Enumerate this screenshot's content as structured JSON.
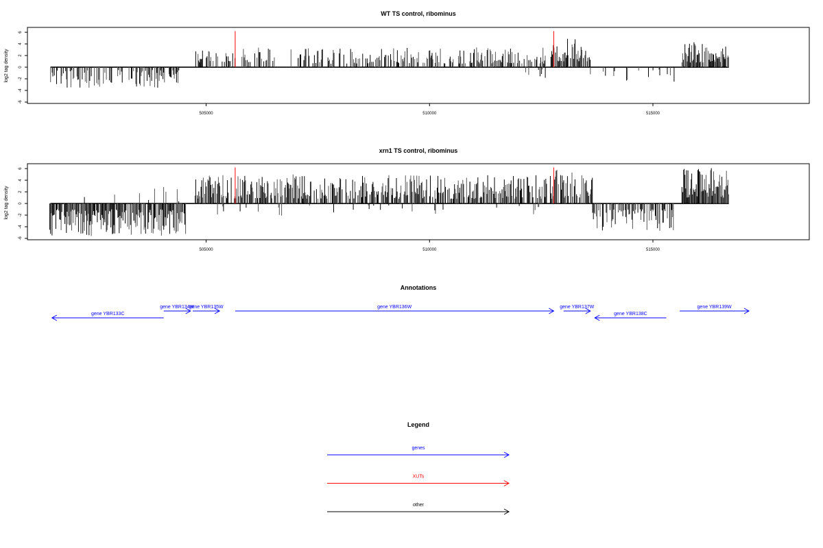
{
  "chart_data": [
    {
      "type": "bar",
      "title": "WT TS control, ribominus",
      "xlabel": "",
      "ylabel": "log2 tag density",
      "xlim": [
        501000,
        518500
      ],
      "ylim": [
        -6,
        6.6
      ],
      "xticks": [
        505000,
        510000,
        515000
      ],
      "yticks": [
        -6,
        -4,
        -2,
        0,
        2,
        4,
        6
      ],
      "grid": false,
      "segments": [
        {
          "x": [
            501500,
            504400
          ],
          "kind": "neg",
          "lo": 0.5,
          "hi": 3.6,
          "density": 0.45
        },
        {
          "x": [
            504750,
            505650
          ],
          "kind": "pos",
          "lo": 0.8,
          "hi": 3.0,
          "density": 0.5
        },
        {
          "x": [
            505800,
            506550
          ],
          "kind": "pos",
          "lo": 0.8,
          "hi": 3.4,
          "density": 0.5
        },
        {
          "x": [
            506900,
            512600
          ],
          "kind": "pos",
          "lo": 0.6,
          "hi": 3.4,
          "density": 0.45
        },
        {
          "x": [
            512000,
            512600
          ],
          "kind": "neg",
          "lo": 0.4,
          "hi": 2.0,
          "density": 0.15
        },
        {
          "x": [
            512700,
            513600
          ],
          "kind": "pos",
          "lo": 1.0,
          "hi": 5.0,
          "density": 0.7
        },
        {
          "x": [
            513600,
            515500
          ],
          "kind": "neg",
          "lo": 0.4,
          "hi": 2.6,
          "density": 0.12
        },
        {
          "x": [
            515650,
            516700
          ],
          "kind": "pos",
          "lo": 0.8,
          "hi": 4.4,
          "density": 0.8
        }
      ],
      "highlights": [
        {
          "x": 505650,
          "value": 6.2
        },
        {
          "x": 512780,
          "value": 6.2
        }
      ]
    },
    {
      "type": "bar",
      "title": "xrn1 TS control, ribominus",
      "xlabel": "",
      "ylabel": "log2 tag density",
      "xlim": [
        501000,
        518500
      ],
      "ylim": [
        -6,
        6.6
      ],
      "xticks": [
        505000,
        510000,
        515000
      ],
      "yticks": [
        -6,
        -4,
        -2,
        0,
        2,
        4,
        6
      ],
      "grid": false,
      "segments": [
        {
          "x": [
            501500,
            504550
          ],
          "kind": "neg",
          "lo": 1.0,
          "hi": 5.6,
          "density": 0.85
        },
        {
          "x": [
            501600,
            504400
          ],
          "kind": "pos",
          "lo": 0.3,
          "hi": 3.0,
          "density": 0.06
        },
        {
          "x": [
            504750,
            512800
          ],
          "kind": "pos",
          "lo": 0.8,
          "hi": 5.0,
          "density": 0.7
        },
        {
          "x": [
            505000,
            512500
          ],
          "kind": "neg",
          "lo": 0.3,
          "hi": 2.2,
          "density": 0.06
        },
        {
          "x": [
            512800,
            513650
          ],
          "kind": "pos",
          "lo": 1.0,
          "hi": 5.8,
          "density": 0.8
        },
        {
          "x": [
            513650,
            515500
          ],
          "kind": "neg",
          "lo": 1.0,
          "hi": 4.8,
          "density": 0.65
        },
        {
          "x": [
            515650,
            516700
          ],
          "kind": "pos",
          "lo": 1.0,
          "hi": 6.3,
          "density": 1.0
        }
      ],
      "highlights": [
        {
          "x": 505650,
          "value": 6.2
        },
        {
          "x": 512780,
          "value": 6.2
        }
      ]
    }
  ],
  "annotations": {
    "title": "Annotations",
    "genes": [
      {
        "label": "gene YBR133C",
        "start": 501550,
        "end": 504050,
        "strand": "-",
        "row": 2,
        "color": "#0000ff"
      },
      {
        "label": "gene YBR134W",
        "start": 504050,
        "end": 504650,
        "strand": "+",
        "row": 1,
        "color": "#0000ff"
      },
      {
        "label": "gene YBR135W",
        "start": 504700,
        "end": 505300,
        "strand": "+",
        "row": 1,
        "color": "#0000ff"
      },
      {
        "label": "gene YBR136W",
        "start": 505650,
        "end": 512780,
        "strand": "+",
        "row": 1,
        "color": "#0000ff"
      },
      {
        "label": "gene YBR137W",
        "start": 513000,
        "end": 513600,
        "strand": "+",
        "row": 1,
        "color": "#0000ff"
      },
      {
        "label": "gene YBR138C",
        "start": 513700,
        "end": 515300,
        "strand": "-",
        "row": 2,
        "color": "#0000ff"
      },
      {
        "label": "gene YBR139W",
        "start": 515600,
        "end": 517150,
        "strand": "+",
        "row": 1,
        "color": "#0000ff"
      }
    ]
  },
  "legend": {
    "title": "Legend",
    "items": [
      {
        "label": "genes",
        "color": "#0000ff"
      },
      {
        "label": "XUTs",
        "color": "#ff0000"
      },
      {
        "label": "other",
        "color": "#000000"
      }
    ]
  }
}
